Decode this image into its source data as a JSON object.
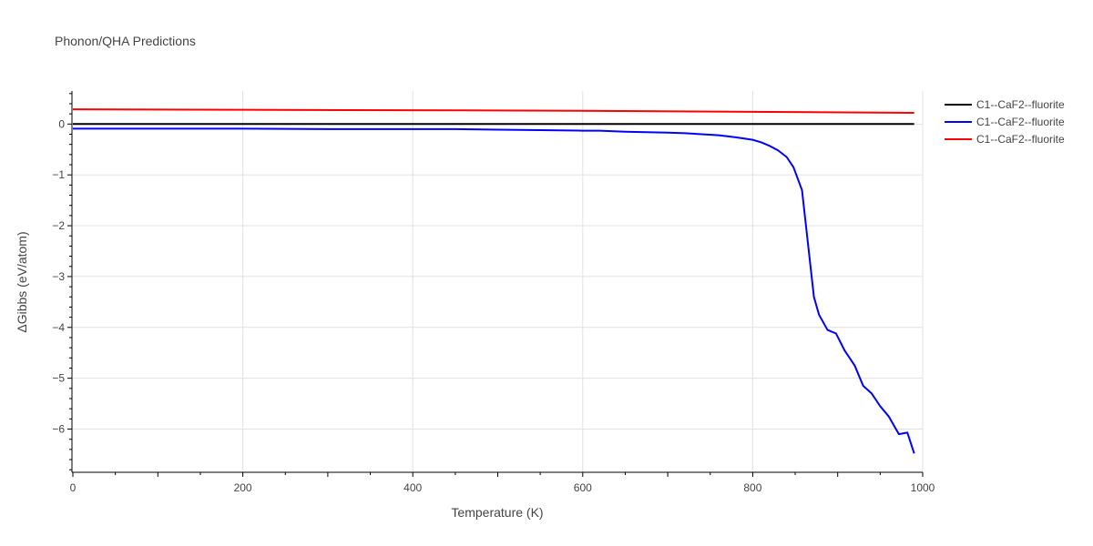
{
  "chart_data": {
    "type": "line",
    "title": "Phonon/QHA Predictions",
    "xlabel": "Temperature (K)",
    "ylabel": "ΔGibbs (eV/atom)",
    "xlim": [
      0,
      1000
    ],
    "ylim": [
      -6.85,
      0.65
    ],
    "grid": true,
    "legend_position": "top-right",
    "x_ticks": [
      0,
      200,
      400,
      600,
      800,
      1000
    ],
    "y_ticks": [
      0,
      -1,
      -2,
      -3,
      -4,
      -5,
      -6
    ],
    "x_tick_labels": [
      "0",
      "200",
      "400",
      "600",
      "800",
      "1000"
    ],
    "y_tick_labels": [
      "0",
      "−1",
      "−2",
      "−3",
      "−4",
      "−5",
      "−6"
    ],
    "series": [
      {
        "name": "C1--CaF2--fluorite",
        "color": "#000000",
        "x": [
          0,
          990
        ],
        "y": [
          0,
          0
        ]
      },
      {
        "name": "C1--CaF2--fluorite",
        "color": "#0000ff",
        "x": [
          0,
          100,
          200,
          300,
          400,
          450,
          500,
          550,
          600,
          620,
          650,
          700,
          720,
          760,
          780,
          800,
          810,
          820,
          830,
          840,
          848,
          858,
          866,
          872,
          878,
          888,
          898,
          908,
          920,
          930,
          940,
          950,
          960,
          972,
          982,
          990
        ],
        "y": [
          -0.09,
          -0.09,
          -0.09,
          -0.1,
          -0.1,
          -0.1,
          -0.11,
          -0.12,
          -0.13,
          -0.13,
          -0.15,
          -0.17,
          -0.18,
          -0.22,
          -0.26,
          -0.31,
          -0.36,
          -0.43,
          -0.52,
          -0.65,
          -0.85,
          -1.3,
          -2.5,
          -3.4,
          -3.75,
          -4.05,
          -4.12,
          -4.45,
          -4.75,
          -5.15,
          -5.3,
          -5.55,
          -5.75,
          -6.1,
          -6.07,
          -6.48
        ]
      },
      {
        "name": "C1--CaF2--fluorite",
        "color": "#ff0000",
        "x": [
          0,
          200,
          450,
          600,
          800,
          990
        ],
        "y": [
          0.29,
          0.28,
          0.27,
          0.26,
          0.24,
          0.22
        ]
      }
    ]
  }
}
